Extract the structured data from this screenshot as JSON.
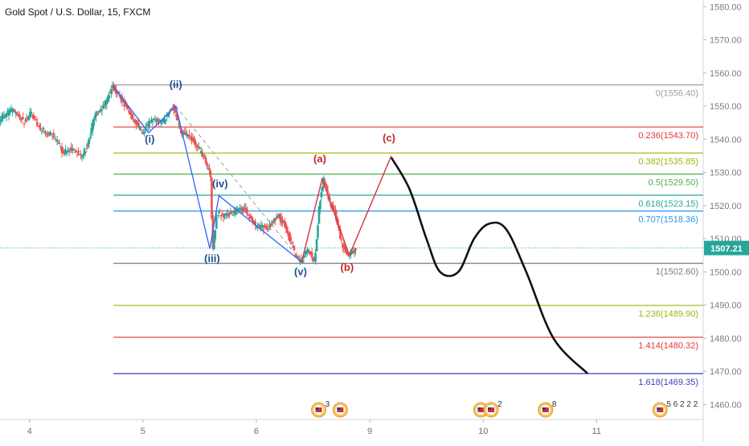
{
  "chart_data": {
    "type": "candlestick",
    "title": "Gold Spot / U.S. Dollar, 15, FXCM",
    "x_ticks": [
      "4",
      "5",
      "6",
      "9",
      "10",
      "11"
    ],
    "x_axis_day_positions": [
      4,
      5,
      6,
      7,
      8,
      9
    ],
    "xlim": [
      3.74,
      9.94
    ],
    "ylim": [
      1455.5,
      1582
    ],
    "y_ticks": [
      1460,
      1470,
      1480,
      1490,
      1500,
      1510,
      1520,
      1530,
      1540,
      1550,
      1560,
      1570,
      1580
    ],
    "y_tick_labels": [
      "1460.00",
      "1470.00",
      "1480.00",
      "1490.00",
      "1500.00",
      "1510.00",
      "1520.00",
      "1530.00",
      "1540.00",
      "1550.00",
      "1560.00",
      "1570.00",
      "1580.00"
    ],
    "current_price": {
      "value": 1507.21,
      "label": "1507.21",
      "color": "#26a69a"
    },
    "fib_levels": [
      {
        "ratio": "0",
        "value": 1556.4,
        "label": "0(1556.40)",
        "color": "#9e9e9e"
      },
      {
        "ratio": "0.236",
        "value": 1543.7,
        "label": "0.236(1543.70)",
        "color": "#e53935"
      },
      {
        "ratio": "0.382",
        "value": 1535.85,
        "label": "0.382(1535.85)",
        "color": "#9cb80f"
      },
      {
        "ratio": "0.5",
        "value": 1529.5,
        "label": "0.5(1529.50)",
        "color": "#4caf50"
      },
      {
        "ratio": "0.618",
        "value": 1523.15,
        "label": "0.618(1523.15)",
        "color": "#26a69a"
      },
      {
        "ratio": "0.707",
        "value": 1518.36,
        "label": "0.707(1518.36)",
        "color": "#2196f3"
      },
      {
        "ratio": "1",
        "value": 1502.6,
        "label": "1(1502.60)",
        "color": "#787b86"
      },
      {
        "ratio": "1.236",
        "value": 1489.9,
        "label": "1.236(1489.90)",
        "color": "#9cb80f"
      },
      {
        "ratio": "1.414",
        "value": 1480.32,
        "label": "1.414(1480.32)",
        "color": "#e53935"
      },
      {
        "ratio": "1.618",
        "value": 1469.35,
        "label": "1.618(1469.35)",
        "color": "#3f3fb5"
      }
    ],
    "fib_start_x": 4.74,
    "candle_colors": {
      "up": "#26a69a",
      "down": "#ef5350"
    },
    "price_anchors": [
      [
        3.74,
        1546
      ],
      [
        3.86,
        1549
      ],
      [
        3.96,
        1545
      ],
      [
        4.02,
        1548
      ],
      [
        4.1,
        1543
      ],
      [
        4.22,
        1541
      ],
      [
        4.3,
        1536
      ],
      [
        4.38,
        1537
      ],
      [
        4.46,
        1535
      ],
      [
        4.52,
        1538
      ],
      [
        4.58,
        1547
      ],
      [
        4.66,
        1550
      ],
      [
        4.74,
        1556
      ],
      [
        4.8,
        1553
      ],
      [
        4.9,
        1547
      ],
      [
        5.0,
        1542
      ],
      [
        5.08,
        1546
      ],
      [
        5.18,
        1545
      ],
      [
        5.27,
        1550
      ],
      [
        5.34,
        1542
      ],
      [
        5.44,
        1540
      ],
      [
        5.52,
        1536
      ],
      [
        5.6,
        1530
      ],
      [
        5.62,
        1507
      ],
      [
        5.66,
        1518
      ],
      [
        5.72,
        1517
      ],
      [
        5.82,
        1518
      ],
      [
        5.9,
        1519
      ],
      [
        6.0,
        1514
      ],
      [
        6.1,
        1513
      ],
      [
        6.2,
        1517
      ],
      [
        6.26,
        1514
      ],
      [
        6.34,
        1506
      ],
      [
        6.4,
        1503
      ],
      [
        6.46,
        1507
      ],
      [
        6.52,
        1503
      ],
      [
        6.56,
        1520
      ],
      [
        6.6,
        1528
      ],
      [
        6.66,
        1520
      ],
      [
        6.7,
        1518
      ],
      [
        6.76,
        1508
      ],
      [
        6.82,
        1505
      ],
      [
        6.88,
        1507
      ]
    ],
    "wave_path": [
      {
        "points": [
          [
            4.74,
            1556
          ],
          [
            5.05,
            1542
          ],
          [
            5.29,
            1550
          ],
          [
            5.59,
            1507
          ],
          [
            5.67,
            1523
          ],
          [
            6.4,
            1503
          ],
          [
            6.58,
            1528
          ],
          [
            6.82,
            1505
          ],
          [
            7.19,
            1535
          ]
        ],
        "color": "#2962ff"
      }
    ],
    "projection_path": [
      [
        7.19,
        1534.5
      ],
      [
        7.35,
        1525
      ],
      [
        7.5,
        1510
      ],
      [
        7.62,
        1500
      ],
      [
        7.78,
        1500
      ],
      [
        7.92,
        1510
      ],
      [
        8.05,
        1514.5
      ],
      [
        8.2,
        1513
      ],
      [
        8.38,
        1500
      ],
      [
        8.62,
        1480
      ],
      [
        8.92,
        1469.35
      ]
    ],
    "wave_labels": [
      {
        "text": "(ii)",
        "x": 5.29,
        "y": 1555.5,
        "color": "#1e4f8a"
      },
      {
        "text": "(i)",
        "x": 5.06,
        "y": 1539,
        "color": "#1e4f8a"
      },
      {
        "text": "(iv)",
        "x": 5.68,
        "y": 1525.5,
        "color": "#1e4f8a"
      },
      {
        "text": "(iii)",
        "x": 5.61,
        "y": 1503,
        "color": "#1e4f8a"
      },
      {
        "text": "(v)",
        "x": 6.39,
        "y": 1499,
        "color": "#1e4f8a"
      },
      {
        "text": "(a)",
        "x": 6.56,
        "y": 1533,
        "color": "#c62828"
      },
      {
        "text": "(b)",
        "x": 6.8,
        "y": 1500.3,
        "color": "#c62828"
      },
      {
        "text": "(c)",
        "x": 7.17,
        "y": 1539.3,
        "color": "#c62828"
      }
    ],
    "event_markers": [
      {
        "x": 6.55,
        "count": "3"
      },
      {
        "x": 6.74,
        "count": ""
      },
      {
        "x": 7.98,
        "count": ""
      },
      {
        "x": 8.07,
        "count": "2"
      },
      {
        "x": 8.55,
        "count": "8"
      },
      {
        "x": 9.56,
        "count": "5 6 2 2 2"
      }
    ]
  }
}
